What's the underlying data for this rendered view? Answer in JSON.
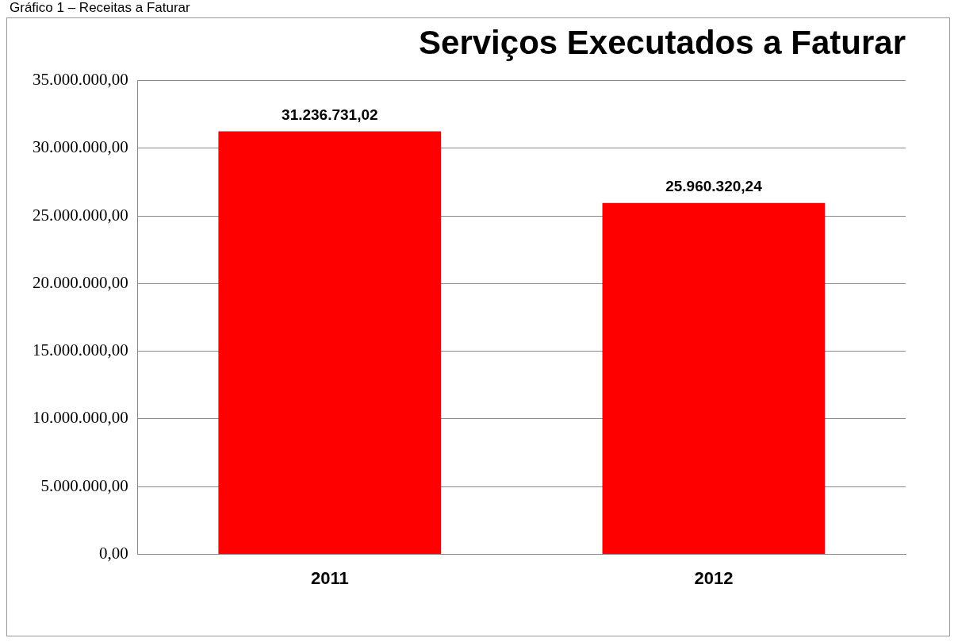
{
  "chart_data": {
    "type": "bar",
    "title": "Serviços Executados a Faturar",
    "annotations": [
      "Gráfico 1 – Receitas a Faturar"
    ],
    "categories": [
      "2011",
      "2012"
    ],
    "values": [
      31236731.02,
      25960320.24
    ],
    "value_labels": [
      "31.236.731,02",
      "25.960.320,24"
    ],
    "color": "#ff0000",
    "ylim": [
      0,
      35000000
    ],
    "yticks": [
      {
        "value": 0,
        "label": "0,00"
      },
      {
        "value": 5000000,
        "label": "5.000.000,00"
      },
      {
        "value": 10000000,
        "label": "10.000.000,00"
      },
      {
        "value": 15000000,
        "label": "15.000.000,00"
      },
      {
        "value": 20000000,
        "label": "20.000.000,00"
      },
      {
        "value": 25000000,
        "label": "25.000.000,00"
      },
      {
        "value": 30000000,
        "label": "30.000.000,00"
      },
      {
        "value": 35000000,
        "label": "35.000.000,00"
      }
    ],
    "grid": "y"
  }
}
